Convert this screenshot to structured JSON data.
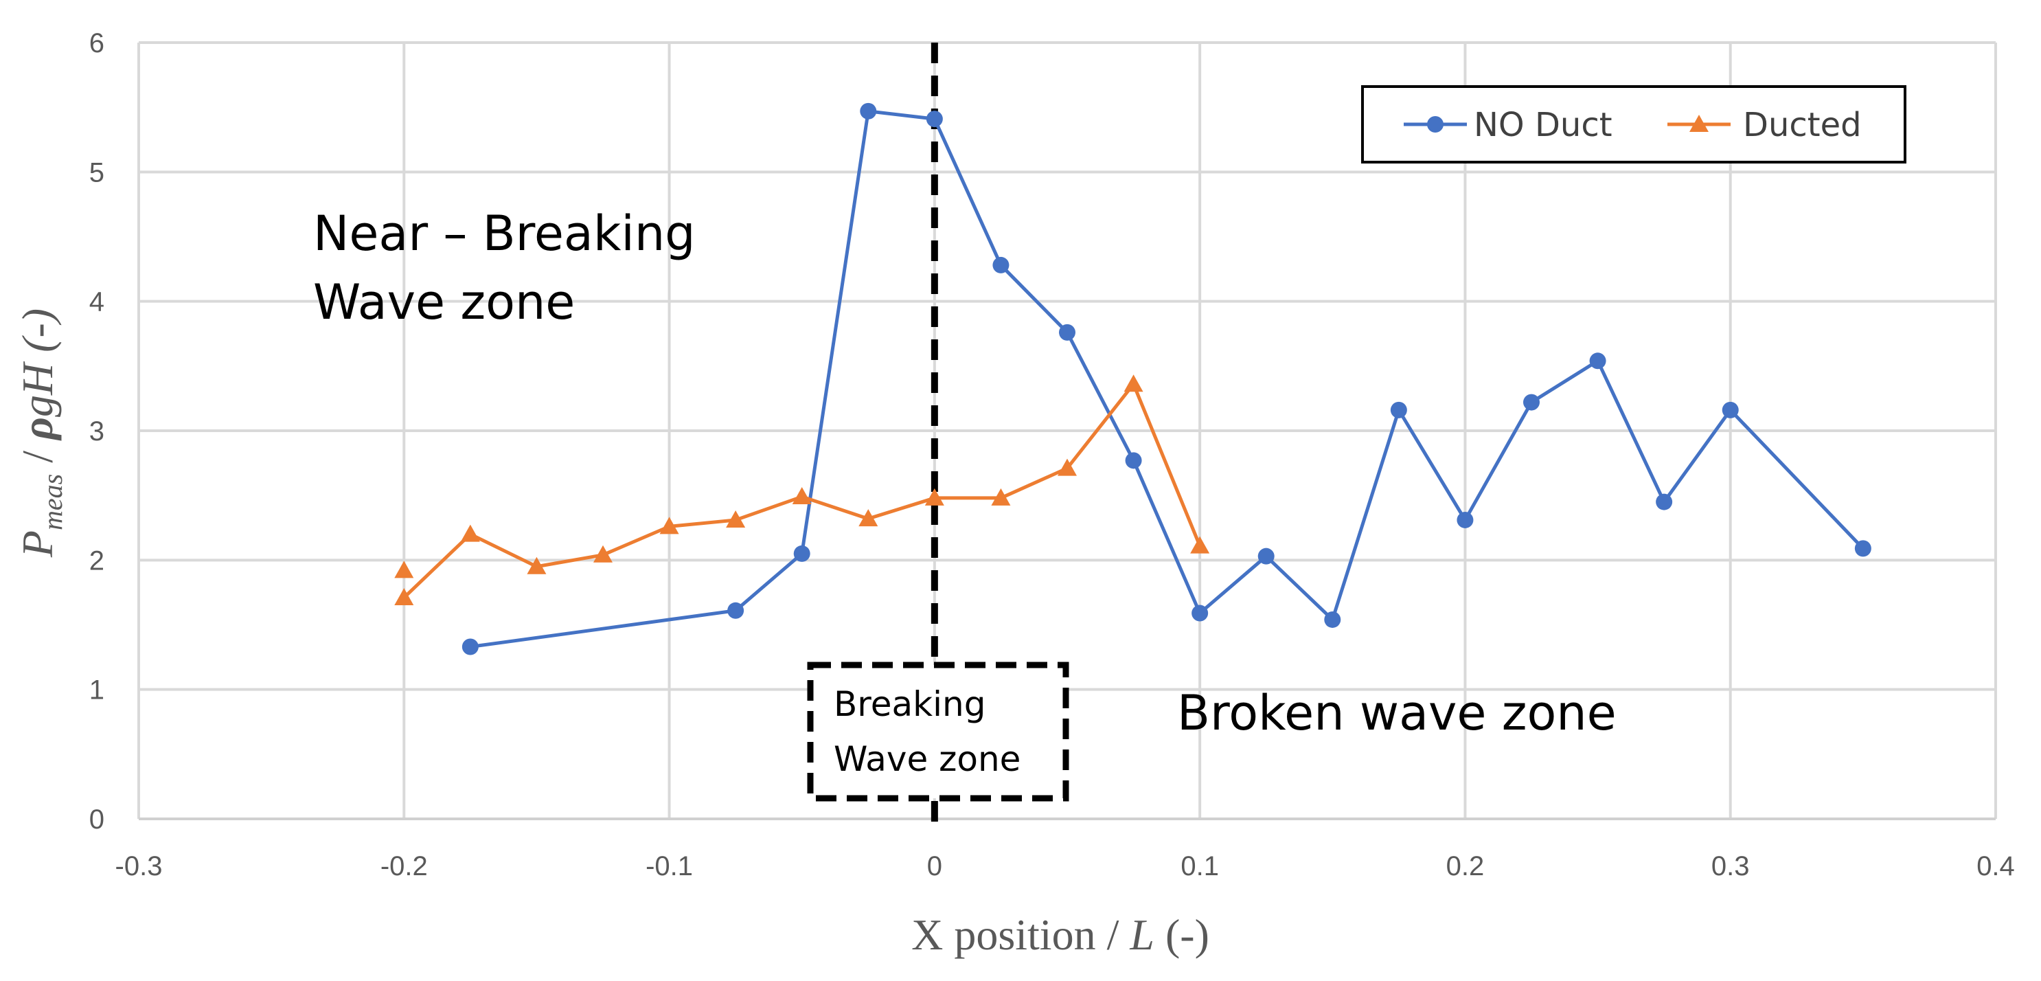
{
  "chart_data": {
    "type": "line",
    "xlabel": "X position  / L (-)",
    "ylabel": "P_meas / ρgH (-)",
    "ylabel_parts": {
      "symbol": "P",
      "subscript": "meas",
      "rest": " / ",
      "rho": "ρ",
      "tail": "gH (-)"
    },
    "xlabel_parts": {
      "main": "X position  / ",
      "italic": "L",
      "tail": " (-)"
    },
    "xlim": [
      -0.3,
      0.4
    ],
    "ylim": [
      0,
      6
    ],
    "xticks": [
      -0.3,
      -0.2,
      -0.1,
      0,
      0.1,
      0.2,
      0.3,
      0.4
    ],
    "xtick_labels": [
      "-0.3",
      "-0.2",
      "-0.1",
      "0",
      "0.1",
      "0.2",
      "0.3",
      "0.4"
    ],
    "yticks": [
      0,
      1,
      2,
      3,
      4,
      5,
      6
    ],
    "ytick_labels": [
      "0",
      "1",
      "2",
      "3",
      "4",
      "5",
      "6"
    ],
    "grid": true,
    "legend_position": "top-right",
    "series": [
      {
        "name": "NO Duct",
        "color": "#4472C4",
        "marker": "circle",
        "x": [
          -0.175,
          -0.075,
          -0.05,
          -0.025,
          0,
          0.025,
          0.05,
          0.075,
          0.1,
          0.125,
          0.15,
          0.175,
          0.2,
          0.225,
          0.25,
          0.275,
          0.3,
          0.35
        ],
        "y": [
          1.33,
          1.61,
          2.05,
          5.47,
          5.41,
          4.28,
          3.76,
          2.77,
          1.59,
          2.03,
          1.54,
          3.16,
          2.31,
          3.22,
          3.54,
          2.45,
          3.16,
          2.09
        ]
      },
      {
        "name": "Ducted",
        "color": "#ED7D31",
        "marker": "triangle",
        "segments": [
          {
            "x": [
              -0.2,
              -0.175,
              -0.15,
              -0.125,
              -0.1,
              -0.075,
              -0.05,
              -0.025,
              0,
              0.025,
              0.05,
              0.075,
              0.1
            ],
            "y": [
              1.71,
              2.2,
              1.95,
              2.04,
              2.26,
              2.31,
              2.49,
              2.32,
              2.48,
              2.48,
              2.71,
              3.36,
              2.11
            ]
          }
        ],
        "extra_points": {
          "x": [
            -0.2
          ],
          "y": [
            1.92
          ]
        }
      }
    ],
    "annotations": {
      "near_breaking_line1": "Near – Breaking",
      "near_breaking_line2": "Wave zone",
      "breaking_line1": "Breaking",
      "breaking_line2": "Wave zone",
      "broken": "Broken wave zone"
    }
  }
}
